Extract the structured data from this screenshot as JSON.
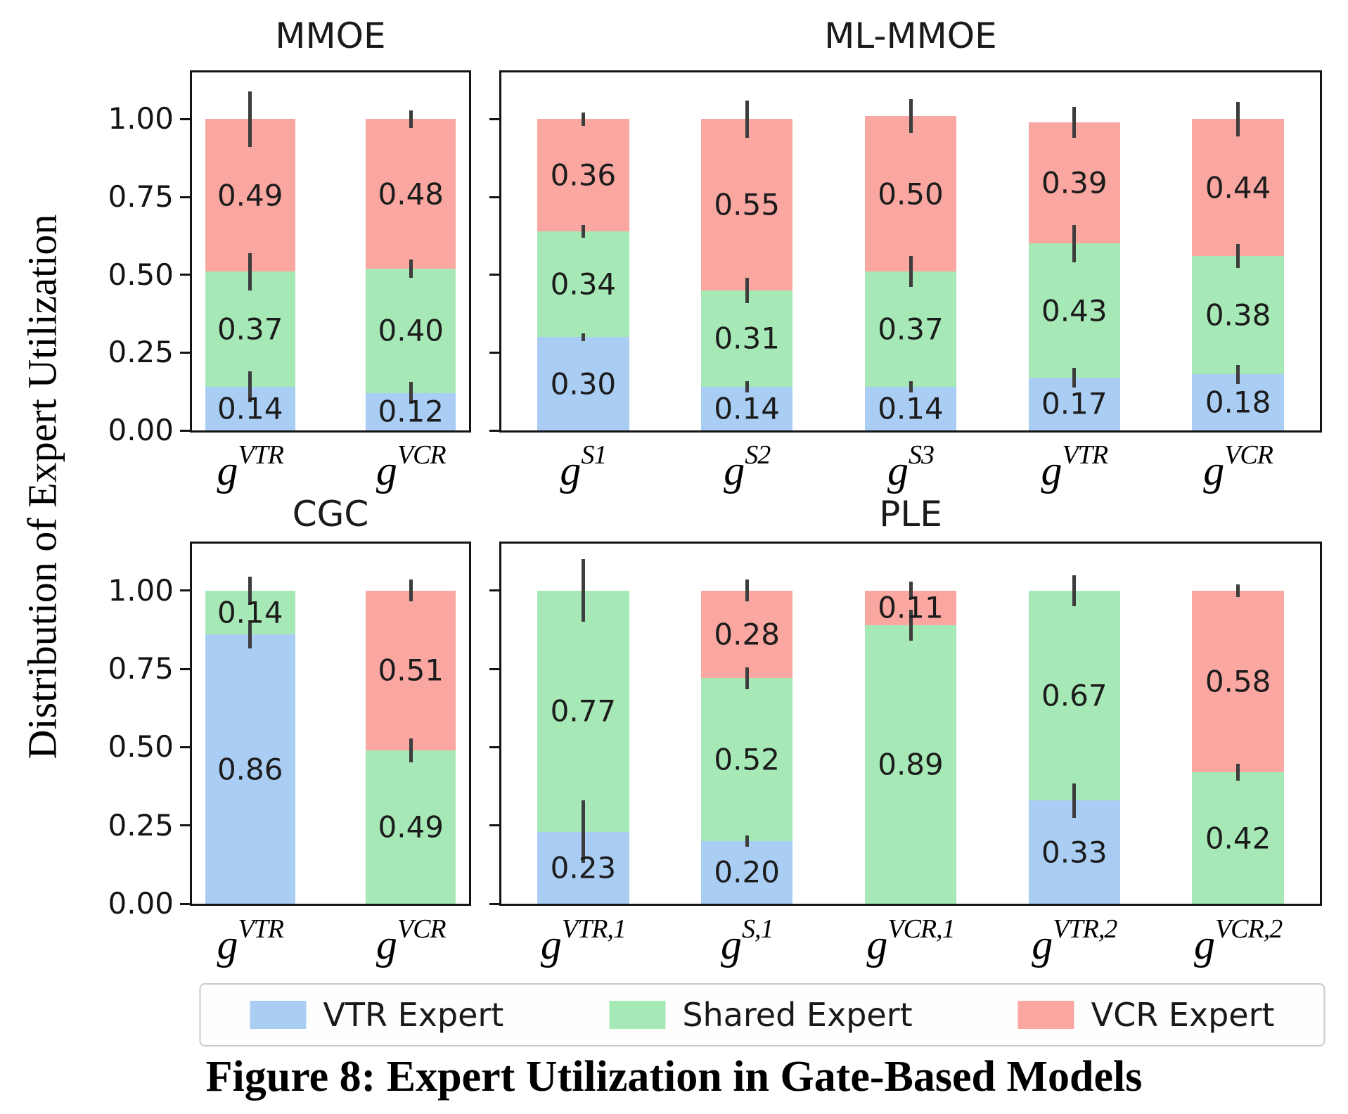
{
  "page": {
    "caption": "Figure 8: Expert Utilization in Gate-Based Models"
  },
  "axes": {
    "ylabel": "Distribution of Expert Utilization",
    "yticks": [
      "0.00",
      "0.25",
      "0.50",
      "0.75",
      "1.00"
    ]
  },
  "colors": {
    "VTR Expert": "#aacdf3",
    "Shared Expert": "#a6e9b6",
    "VCR Expert": "#f9a7a0",
    "error_bar": "#3d3d3d",
    "axis": "#141414"
  },
  "legend": {
    "items": [
      {
        "label": "VTR Expert",
        "color": "#aacdf3"
      },
      {
        "label": "Shared Expert",
        "color": "#a6e9b6"
      },
      {
        "label": "VCR Expert",
        "color": "#f9a7a0"
      }
    ]
  },
  "chart_data": [
    {
      "type": "bar",
      "stacked": true,
      "title": "MMOE",
      "row": 0,
      "col": 0,
      "show_ytick_labels": true,
      "ylim": [
        0,
        1.15
      ],
      "grid": false,
      "bars": [
        {
          "label": {
            "base": "g",
            "sup": "VTR"
          },
          "segments": [
            {
              "series": "VTR Expert",
              "value": 0.14
            },
            {
              "series": "Shared Expert",
              "value": 0.37
            },
            {
              "series": "VCR Expert",
              "value": 0.49
            }
          ],
          "errors": [
            0.05,
            0.06,
            0.09
          ]
        },
        {
          "label": {
            "base": "g",
            "sup": "VCR"
          },
          "segments": [
            {
              "series": "VTR Expert",
              "value": 0.12
            },
            {
              "series": "Shared Expert",
              "value": 0.4
            },
            {
              "series": "VCR Expert",
              "value": 0.48
            }
          ],
          "errors": [
            0.035,
            0.03,
            0.028
          ]
        }
      ]
    },
    {
      "type": "bar",
      "stacked": true,
      "title": "ML-MMOE",
      "row": 0,
      "col": 1,
      "show_ytick_labels": false,
      "ylim": [
        0,
        1.15
      ],
      "grid": false,
      "bars": [
        {
          "label": {
            "base": "g",
            "sup": "S1"
          },
          "segments": [
            {
              "series": "VTR Expert",
              "value": 0.3
            },
            {
              "series": "Shared Expert",
              "value": 0.34
            },
            {
              "series": "VCR Expert",
              "value": 0.36
            }
          ],
          "errors": [
            0.012,
            0.02,
            0.022
          ]
        },
        {
          "label": {
            "base": "g",
            "sup": "S2"
          },
          "segments": [
            {
              "series": "VTR Expert",
              "value": 0.14
            },
            {
              "series": "Shared Expert",
              "value": 0.31
            },
            {
              "series": "VCR Expert",
              "value": 0.55
            }
          ],
          "errors": [
            0.018,
            0.04,
            0.06
          ]
        },
        {
          "label": {
            "base": "g",
            "sup": "S3"
          },
          "segments": [
            {
              "series": "VTR Expert",
              "value": 0.14
            },
            {
              "series": "Shared Expert",
              "value": 0.37
            },
            {
              "series": "VCR Expert",
              "value": 0.5
            }
          ],
          "errors": [
            0.018,
            0.05,
            0.055
          ]
        },
        {
          "label": {
            "base": "g",
            "sup": "VTR"
          },
          "segments": [
            {
              "series": "VTR Expert",
              "value": 0.17
            },
            {
              "series": "Shared Expert",
              "value": 0.43
            },
            {
              "series": "VCR Expert",
              "value": 0.39
            }
          ],
          "errors": [
            0.032,
            0.06,
            0.05
          ]
        },
        {
          "label": {
            "base": "g",
            "sup": "VCR"
          },
          "segments": [
            {
              "series": "VTR Expert",
              "value": 0.18
            },
            {
              "series": "Shared Expert",
              "value": 0.38
            },
            {
              "series": "VCR Expert",
              "value": 0.44
            }
          ],
          "errors": [
            0.03,
            0.038,
            0.055
          ]
        }
      ]
    },
    {
      "type": "bar",
      "stacked": true,
      "title": "CGC",
      "row": 1,
      "col": 0,
      "show_ytick_labels": true,
      "ylim": [
        0,
        1.15
      ],
      "grid": false,
      "bars": [
        {
          "label": {
            "base": "g",
            "sup": "VTR"
          },
          "segments": [
            {
              "series": "VTR Expert",
              "value": 0.86
            },
            {
              "series": "Shared Expert",
              "value": 0.14
            }
          ],
          "errors": [
            0.045,
            0.045
          ]
        },
        {
          "label": {
            "base": "g",
            "sup": "VCR"
          },
          "segments": [
            {
              "series": "Shared Expert",
              "value": 0.49
            },
            {
              "series": "VCR Expert",
              "value": 0.51
            }
          ],
          "errors": [
            0.038,
            0.035
          ]
        }
      ]
    },
    {
      "type": "bar",
      "stacked": true,
      "title": "PLE",
      "row": 1,
      "col": 1,
      "show_ytick_labels": false,
      "ylim": [
        0,
        1.15
      ],
      "grid": false,
      "bars": [
        {
          "label": {
            "base": "g",
            "sup": "VTR,1"
          },
          "segments": [
            {
              "series": "VTR Expert",
              "value": 0.23
            },
            {
              "series": "Shared Expert",
              "value": 0.77
            }
          ],
          "errors": [
            0.1,
            0.1
          ]
        },
        {
          "label": {
            "base": "g",
            "sup": "S,1"
          },
          "segments": [
            {
              "series": "VTR Expert",
              "value": 0.2
            },
            {
              "series": "Shared Expert",
              "value": 0.52
            },
            {
              "series": "VCR Expert",
              "value": 0.28
            }
          ],
          "errors": [
            0.018,
            0.035,
            0.035
          ]
        },
        {
          "label": {
            "base": "g",
            "sup": "VCR,1"
          },
          "segments": [
            {
              "series": "Shared Expert",
              "value": 0.89
            },
            {
              "series": "VCR Expert",
              "value": 0.11
            }
          ],
          "errors": [
            0.05,
            0.028
          ]
        },
        {
          "label": {
            "base": "g",
            "sup": "VTR,2"
          },
          "segments": [
            {
              "series": "VTR Expert",
              "value": 0.33
            },
            {
              "series": "Shared Expert",
              "value": 0.67
            }
          ],
          "errors": [
            0.055,
            0.05
          ]
        },
        {
          "label": {
            "base": "g",
            "sup": "VCR,2"
          },
          "segments": [
            {
              "series": "Shared Expert",
              "value": 0.42
            },
            {
              "series": "VCR Expert",
              "value": 0.58
            }
          ],
          "errors": [
            0.028,
            0.02
          ]
        }
      ]
    }
  ]
}
